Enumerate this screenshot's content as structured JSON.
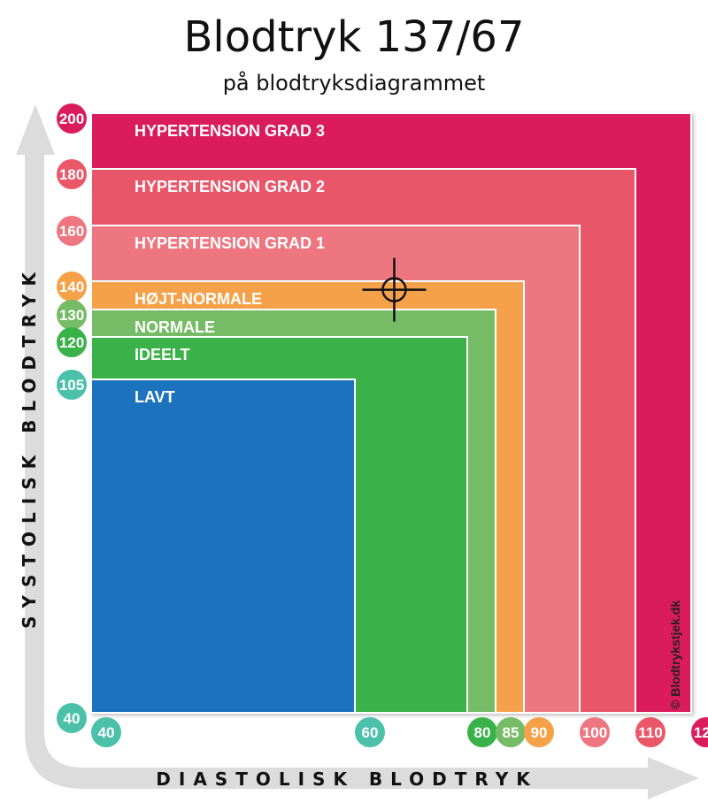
{
  "title": "Blodtryk 137/67",
  "subtitle": "på blodtryksdiagrammet",
  "chart_data": {
    "type": "area",
    "xlabel": "DIASTOLISK BLODTRYK",
    "ylabel": "SYSTOLISK BLODTRYK",
    "credit": "© Blodtrykstjek.dk",
    "marker": {
      "diastolic": 67,
      "systolic": 137
    },
    "zones": [
      {
        "label": "HYPERTENSION GRAD 3",
        "max_diastolic": 120,
        "max_systolic": 200,
        "color": "#db1c5c"
      },
      {
        "label": "HYPERTENSION GRAD 2",
        "max_diastolic": 110,
        "max_systolic": 180,
        "color": "#ea5769"
      },
      {
        "label": "HYPERTENSION GRAD 1",
        "max_diastolic": 100,
        "max_systolic": 160,
        "color": "#ee7680"
      },
      {
        "label": "HØJT-NORMALE",
        "max_diastolic": 90,
        "max_systolic": 140,
        "color": "#f5a148"
      },
      {
        "label": "NORMALE",
        "max_diastolic": 85,
        "max_systolic": 130,
        "color": "#76bb66"
      },
      {
        "label": "IDEELT",
        "max_diastolic": 80,
        "max_systolic": 120,
        "color": "#3ab24a"
      },
      {
        "label": "LAVT",
        "max_diastolic": 60,
        "max_systolic": 105,
        "color": "#1c72bd"
      }
    ],
    "y_ticks": [
      {
        "label": "200",
        "value": 200,
        "color": "#db1c5c"
      },
      {
        "label": "180",
        "value": 180,
        "color": "#ea5769"
      },
      {
        "label": "160",
        "value": 160,
        "color": "#ee7680"
      },
      {
        "label": "140",
        "value": 140,
        "color": "#f5a148"
      },
      {
        "label": "130",
        "value": 130,
        "color": "#76bb66"
      },
      {
        "label": "120",
        "value": 120,
        "color": "#3ab24a"
      },
      {
        "label": "105",
        "value": 105,
        "color": "#4bc1a9"
      },
      {
        "label": "40",
        "value": 40,
        "color": "#4bc1a9"
      }
    ],
    "x_ticks": [
      {
        "label": "40",
        "value": 40,
        "color": "#4bc1a9"
      },
      {
        "label": "60",
        "value": 60,
        "color": "#4bc1a9"
      },
      {
        "label": "80",
        "value": 80,
        "color": "#3ab24a"
      },
      {
        "label": "85",
        "value": 85,
        "color": "#76bb66"
      },
      {
        "label": "90",
        "value": 90,
        "color": "#f5a148"
      },
      {
        "label": "100",
        "value": 100,
        "color": "#ee7680"
      },
      {
        "label": "110",
        "value": 110,
        "color": "#ea5769"
      },
      {
        "label": "120",
        "value": 120,
        "color": "#db1c5c"
      }
    ]
  }
}
